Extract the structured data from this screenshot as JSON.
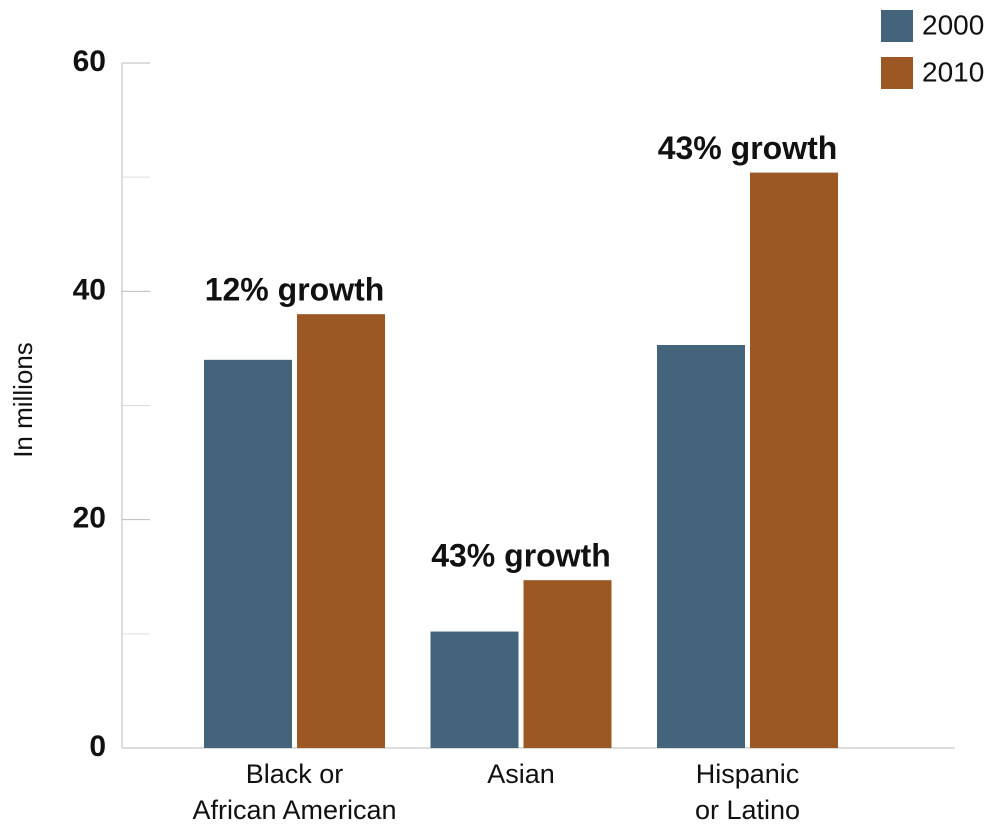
{
  "chart_data": {
    "type": "bar",
    "y_label": "In millions",
    "categories": [
      "Black or\nAfrican American",
      "Asian",
      "Hispanic\nor Latino"
    ],
    "series": [
      {
        "name": "2000",
        "color": "#43647b",
        "values": [
          34.0,
          10.2,
          35.3
        ]
      },
      {
        "name": "2010",
        "color": "#9b5824",
        "values": [
          38.0,
          14.7,
          50.4
        ]
      }
    ],
    "group_labels": [
      "12% growth",
      "43% growth",
      "43% growth"
    ],
    "ylim": [
      0,
      60
    ],
    "yticks": [
      0,
      20,
      40,
      60
    ],
    "minor_yticks": [
      10,
      30,
      50
    ],
    "legend": "top-right"
  }
}
